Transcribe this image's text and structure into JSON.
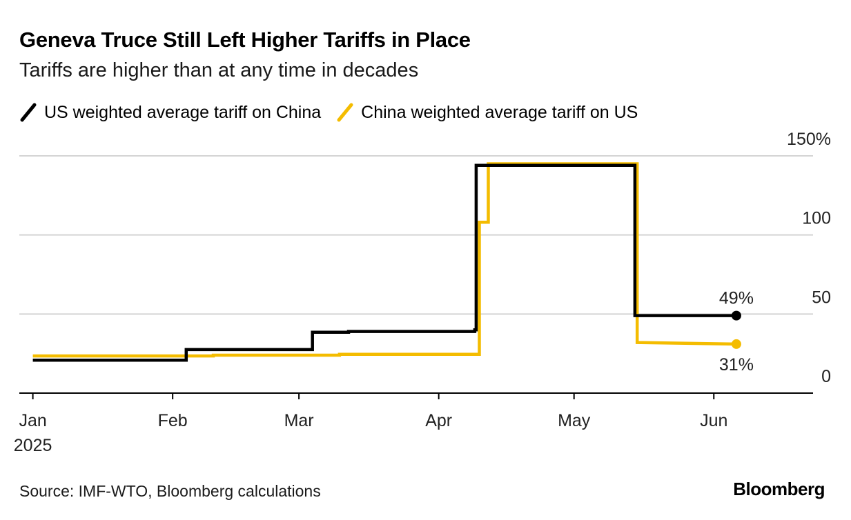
{
  "chart_data": {
    "type": "line",
    "title": "Geneva Truce Still Left Higher Tariffs in Place",
    "subtitle": "Tariffs are higher than at any time in decades",
    "source": "Source: IMF-WTO, Bloomberg calculations",
    "brand": "Bloomberg",
    "xlabel": "",
    "ylabel": "",
    "x_unit": "days since Jan 1, 2025",
    "xlim": [
      -3,
      173
    ],
    "ylim": [
      0,
      150
    ],
    "grid": true,
    "y_ticks": [
      {
        "value": 0,
        "label": "0"
      },
      {
        "value": 50,
        "label": "50"
      },
      {
        "value": 100,
        "label": "100"
      },
      {
        "value": 150,
        "label": "150%"
      }
    ],
    "x_ticks": [
      {
        "value": 0,
        "label": "Jan",
        "sublabel": "2025"
      },
      {
        "value": 31,
        "label": "Feb"
      },
      {
        "value": 59,
        "label": "Mar"
      },
      {
        "value": 90,
        "label": "Apr"
      },
      {
        "value": 120,
        "label": "May"
      },
      {
        "value": 151,
        "label": "Jun"
      }
    ],
    "series": [
      {
        "name": "US weighted average tariff on China",
        "color": "#000000",
        "end_label": "49%",
        "points": [
          [
            0,
            20.8
          ],
          [
            34,
            20.8
          ],
          [
            34,
            27.5
          ],
          [
            62,
            27.5
          ],
          [
            62,
            38.5
          ],
          [
            70,
            38.5
          ],
          [
            70,
            39
          ],
          [
            98,
            39
          ],
          [
            98,
            40
          ],
          [
            98.3,
            40
          ],
          [
            98.3,
            144
          ],
          [
            133.5,
            144
          ],
          [
            133.5,
            49
          ],
          [
            156,
            49
          ]
        ]
      },
      {
        "name": "China weighted average tariff on US",
        "color": "#F4BC00",
        "end_label": "31%",
        "points": [
          [
            0,
            23.5
          ],
          [
            40,
            23.5
          ],
          [
            40,
            24
          ],
          [
            68,
            24
          ],
          [
            68,
            24.5
          ],
          [
            99,
            24.5
          ],
          [
            99,
            108
          ],
          [
            101,
            108
          ],
          [
            101,
            145
          ],
          [
            134,
            145
          ],
          [
            134,
            32
          ],
          [
            156,
            31
          ]
        ]
      }
    ]
  }
}
